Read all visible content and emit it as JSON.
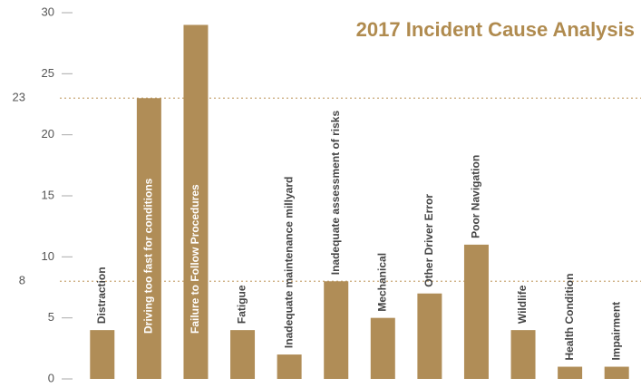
{
  "chart_data": {
    "type": "bar",
    "title": "2017 Incident Cause Analysis",
    "categories": [
      "Distraction",
      "Driving too fast for conditions",
      "Failure to Follow Procedures",
      "Fatigue",
      "Inadequate maintenance millyard",
      "Inadequate assessment of risks",
      "Mechanical",
      "Other Driver Error",
      "Poor Navigation",
      "Wildlife",
      "Health Condition",
      "Impairment"
    ],
    "values": [
      4,
      23,
      29,
      4,
      2,
      8,
      5,
      7,
      11,
      4,
      1,
      1
    ],
    "color": "#b08d57",
    "ylim": [
      0,
      30
    ],
    "yticks": [
      0,
      5,
      10,
      15,
      20,
      25,
      30
    ],
    "reference_lines": [
      23,
      8
    ]
  }
}
